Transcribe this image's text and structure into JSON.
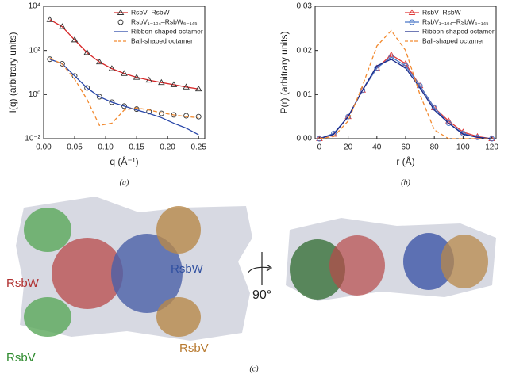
{
  "chart_data": [
    {
      "type": "line",
      "panel_label": "(a)",
      "xlabel": "q (Å⁻¹)",
      "ylabel": "I(q) (arbitrary units)",
      "yscale": "log",
      "legend": "upper right",
      "grid": false,
      "xlim": [
        0,
        0.26
      ],
      "xticks": [
        {
          "value": 0,
          "label": "0.00"
        },
        0.05,
        {
          "value": 0.1,
          "label": "0.10"
        },
        0.15,
        {
          "value": 0.2,
          "label": "0.20"
        },
        0.25
      ],
      "ylim": [
        0.01,
        10000
      ],
      "yticks": [
        {
          "value": 0.01,
          "label": "10⁻²"
        },
        {
          "value": 1,
          "label": "10⁰"
        },
        {
          "value": 100,
          "label": "10²"
        },
        {
          "value": 10000,
          "label": "10⁴"
        }
      ],
      "x": [
        0.01,
        0.03,
        0.05,
        0.07,
        0.09,
        0.11,
        0.13,
        0.15,
        0.17,
        0.19,
        0.21,
        0.23,
        0.25
      ],
      "series": [
        {
          "name": "RsbV–RsbW",
          "marker": "triangle",
          "marker_color": "#333333",
          "color": "#d62728",
          "line": true,
          "dash": false,
          "values": [
            2500,
            1200,
            300,
            80,
            30,
            15,
            9,
            6,
            4.5,
            3.5,
            2.8,
            2.2,
            1.8
          ]
        },
        {
          "name": "RsbV₁₋₁₀₄–RsbW₆₋₁₄₅",
          "marker": "circle",
          "marker_color": "#333333",
          "color": "#333333",
          "line": false,
          "dash": false,
          "values": [
            40,
            25,
            7,
            2,
            0.8,
            0.45,
            0.3,
            0.22,
            0.17,
            0.14,
            0.12,
            0.11,
            0.1
          ]
        },
        {
          "name": "Ribbon-shaped octamer",
          "marker": "none",
          "color": "#2846a8",
          "line": true,
          "dash": false,
          "values": [
            40,
            25,
            7,
            2,
            0.8,
            0.45,
            0.3,
            0.2,
            0.14,
            0.09,
            0.05,
            0.03,
            0.015
          ]
        },
        {
          "name": "Ball-shaped octamer",
          "marker": "none",
          "color": "#f28a30",
          "line": true,
          "dash": true,
          "values": [
            45,
            24,
            5,
            0.6,
            0.04,
            0.05,
            0.2,
            0.25,
            0.2,
            0.15,
            0.12,
            0.1,
            0.09
          ]
        }
      ]
    },
    {
      "type": "line",
      "panel_label": "(b)",
      "xlabel": "r (Å)",
      "ylabel": "P(r) (arbitrary units)",
      "yscale": "linear",
      "legend": "upper right",
      "grid": false,
      "xlim": [
        -3,
        123
      ],
      "xticks": [
        0,
        20,
        40,
        60,
        80,
        100,
        120
      ],
      "ylim": [
        0,
        0.03
      ],
      "yticks": [
        {
          "value": 0,
          "label": "0.00"
        },
        0.01,
        0.02,
        0.03
      ],
      "x": [
        0,
        10,
        20,
        30,
        40,
        50,
        60,
        70,
        80,
        90,
        100,
        110,
        120
      ],
      "series": [
        {
          "name": "RsbV–RsbW",
          "marker": "triangle",
          "marker_color": "#e03a3a",
          "color": "#e03a3a",
          "line": true,
          "dash": false,
          "values": [
            0,
            0.001,
            0.005,
            0.011,
            0.016,
            0.019,
            0.017,
            0.012,
            0.007,
            0.004,
            0.0015,
            0.0005,
            0
          ]
        },
        {
          "name": "RsbV₁₋₁₀₄–RsbW₆₋₁₄₅",
          "marker": "circle",
          "marker_color": "#4a78c8",
          "color": "#4a78c8",
          "line": true,
          "dash": false,
          "values": [
            0,
            0.0012,
            0.005,
            0.011,
            0.016,
            0.0185,
            0.0165,
            0.012,
            0.007,
            0.0035,
            0.0012,
            0.0003,
            0
          ]
        },
        {
          "name": "Ribbon-shaped octamer",
          "marker": "none",
          "color": "#1a2a8a",
          "line": true,
          "dash": false,
          "values": [
            0,
            0.001,
            0.005,
            0.011,
            0.0165,
            0.018,
            0.016,
            0.0115,
            0.0065,
            0.0035,
            0.001,
            0.0003,
            0
          ]
        },
        {
          "name": "Ball-shaped octamer",
          "marker": "none",
          "color": "#f28a30",
          "line": true,
          "dash": true,
          "values": [
            0,
            0.0005,
            0.004,
            0.012,
            0.021,
            0.0245,
            0.02,
            0.01,
            0.002,
            0,
            0,
            0,
            0
          ]
        }
      ]
    }
  ],
  "panel_c": {
    "label_rsbw_left": "RsbW",
    "label_rsbw_right": "RsbW",
    "label_rsbv_left": "RsbV",
    "label_rsbv_right": "RsbV",
    "rotation": "90°",
    "panel_label": "(c)"
  }
}
